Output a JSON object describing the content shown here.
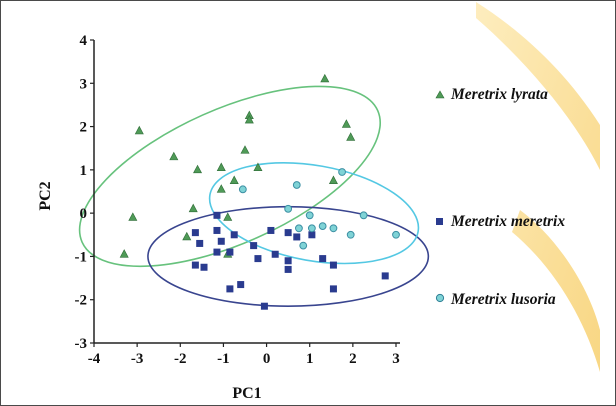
{
  "chart_data": {
    "type": "scatter",
    "xlabel": "PC1",
    "ylabel": "PC2",
    "xlim": [
      -4,
      3
    ],
    "ylim": [
      -3,
      4
    ],
    "xticks": [
      "-4",
      "-3",
      "-2",
      "-1",
      "0",
      "1",
      "2",
      "3"
    ],
    "yticks": [
      "-3",
      "-2",
      "-1",
      "0",
      "1",
      "2",
      "3",
      "4"
    ],
    "grid": false,
    "legend_position": "right",
    "series": [
      {
        "name": "Meretrix lyrata",
        "marker": "triangle",
        "color": "#4f9a57",
        "ellipse_color": "#67c27d",
        "points": [
          [
            1.35,
            3.1
          ],
          [
            -0.4,
            2.25
          ],
          [
            -0.4,
            2.15
          ],
          [
            -2.95,
            1.9
          ],
          [
            1.85,
            2.05
          ],
          [
            1.95,
            1.75
          ],
          [
            -2.15,
            1.3
          ],
          [
            -1.6,
            1.0
          ],
          [
            -0.5,
            1.45
          ],
          [
            -0.2,
            1.05
          ],
          [
            -1.05,
            1.05
          ],
          [
            -0.75,
            0.75
          ],
          [
            -1.05,
            0.55
          ],
          [
            1.55,
            0.75
          ],
          [
            -1.7,
            0.1
          ],
          [
            -0.9,
            -0.1
          ],
          [
            -3.1,
            -0.1
          ],
          [
            -1.85,
            -0.55
          ],
          [
            -3.3,
            -0.95
          ],
          [
            -0.9,
            -0.95
          ]
        ],
        "ellipse": {
          "cx": -0.85,
          "cy": 0.85,
          "rx": 3.75,
          "ry": 1.55,
          "angle": 24
        }
      },
      {
        "name": "Meretrix meretrix",
        "marker": "square",
        "color": "#2a3b8f",
        "ellipse_color": "#39458f",
        "points": [
          [
            -1.15,
            -0.05
          ],
          [
            -1.65,
            -0.45
          ],
          [
            -1.15,
            -0.4
          ],
          [
            -0.75,
            -0.5
          ],
          [
            -1.05,
            -0.65
          ],
          [
            -1.55,
            -0.7
          ],
          [
            0.1,
            -0.4
          ],
          [
            0.5,
            -0.45
          ],
          [
            0.7,
            -0.55
          ],
          [
            1.05,
            -0.5
          ],
          [
            -1.15,
            -0.9
          ],
          [
            -0.85,
            -0.9
          ],
          [
            -0.3,
            -0.75
          ],
          [
            0.2,
            -0.95
          ],
          [
            -0.2,
            -1.05
          ],
          [
            0.5,
            -1.1
          ],
          [
            1.3,
            -1.05
          ],
          [
            1.55,
            -1.2
          ],
          [
            -1.65,
            -1.2
          ],
          [
            -1.45,
            -1.25
          ],
          [
            0.5,
            -1.3
          ],
          [
            -0.6,
            -1.65
          ],
          [
            -0.85,
            -1.75
          ],
          [
            1.55,
            -1.75
          ],
          [
            2.75,
            -1.45
          ],
          [
            -0.05,
            -2.15
          ]
        ],
        "ellipse": {
          "cx": 0.5,
          "cy": -1.0,
          "rx": 3.25,
          "ry": 1.15,
          "angle": 0
        }
      },
      {
        "name": "Meretrix lusoria",
        "marker": "circle",
        "color": "#3c8fa3",
        "ellipse_color": "#54c8e3",
        "points": [
          [
            0.7,
            0.65
          ],
          [
            1.75,
            0.95
          ],
          [
            -0.55,
            0.55
          ],
          [
            0.5,
            0.1
          ],
          [
            2.25,
            -0.05
          ],
          [
            1.0,
            -0.05
          ],
          [
            0.75,
            -0.35
          ],
          [
            1.05,
            -0.35
          ],
          [
            1.3,
            -0.3
          ],
          [
            1.55,
            -0.35
          ],
          [
            1.95,
            -0.5
          ],
          [
            0.85,
            -0.75
          ],
          [
            3.0,
            -0.5
          ]
        ],
        "ellipse": {
          "cx": 1.1,
          "cy": 0.0,
          "rx": 2.45,
          "ry": 1.1,
          "angle": -10
        }
      }
    ]
  }
}
